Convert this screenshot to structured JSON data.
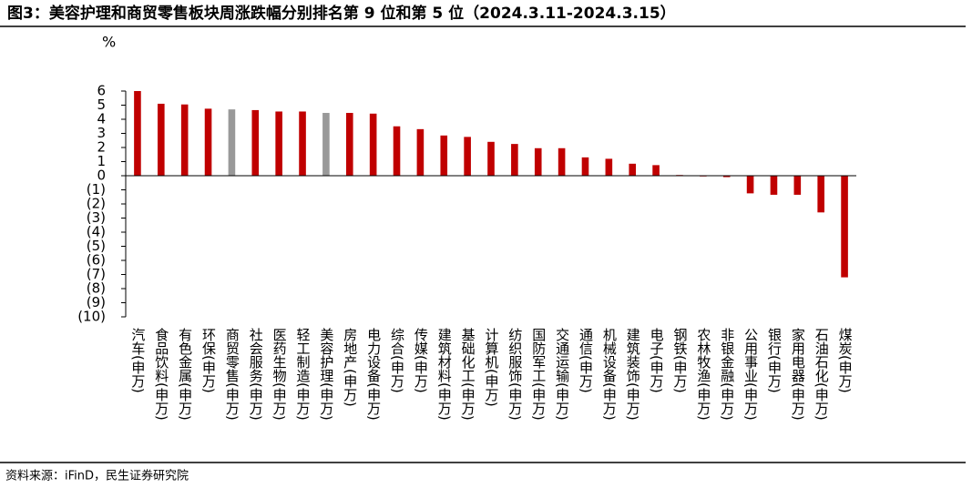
{
  "chart_data": {
    "type": "bar",
    "title": "图3：美容护理和商贸零售板块周涨跌幅分别排名第 9 位和第 5 位（2024.3.11-2024.3.15）",
    "y_unit": "%",
    "source": "资料来源：iFinD，民生证券研究院",
    "categories": [
      "汽车(申万)",
      "食品饮料(申万)",
      "有色金属(申万)",
      "环保(申万)",
      "商贸零售(申万)",
      "社会服务(申万)",
      "医药生物(申万)",
      "轻工制造(申万)",
      "美容护理(申万)",
      "房地产(申万)",
      "电力设备(申万)",
      "综合(申万)",
      "传媒(申万)",
      "建筑材料(申万)",
      "基础化工(申万)",
      "计算机(申万)",
      "纺织服饰(申万)",
      "国防军工(申万)",
      "交通运输(申万)",
      "通信(申万)",
      "机械设备(申万)",
      "建筑装饰(申万)",
      "电子(申万)",
      "钢铁(申万)",
      "农林牧渔(申万)",
      "非银金融(申万)",
      "公用事业(申万)",
      "银行(申万)",
      "家用电器(申万)",
      "石油石化(申万)",
      "煤炭(申万)"
    ],
    "values": [
      6.0,
      5.1,
      5.05,
      4.75,
      4.7,
      4.65,
      4.55,
      4.55,
      4.45,
      4.45,
      4.4,
      3.5,
      3.3,
      2.85,
      2.75,
      2.4,
      2.25,
      1.95,
      1.95,
      1.3,
      1.2,
      0.85,
      0.75,
      0.05,
      -0.05,
      -0.1,
      -1.25,
      -1.35,
      -1.35,
      -2.6,
      -7.2
    ],
    "colors": [
      "#c00000",
      "#c00000",
      "#c00000",
      "#c00000",
      "#999999",
      "#c00000",
      "#c00000",
      "#c00000",
      "#999999",
      "#c00000",
      "#c00000",
      "#c00000",
      "#c00000",
      "#c00000",
      "#c00000",
      "#c00000",
      "#c00000",
      "#c00000",
      "#c00000",
      "#c00000",
      "#c00000",
      "#c00000",
      "#c00000",
      "#c00000",
      "#c00000",
      "#c00000",
      "#c00000",
      "#c00000",
      "#c00000",
      "#c00000",
      "#c00000"
    ],
    "ylim": [
      -10,
      6
    ],
    "yticks": [
      6,
      5,
      4,
      3,
      2,
      1,
      0,
      {
        "value": -1,
        "label": "(1)"
      },
      {
        "value": -2,
        "label": "(2)"
      },
      {
        "value": -3,
        "label": "(3)"
      },
      {
        "value": -4,
        "label": "(4)"
      },
      {
        "value": -5,
        "label": "(5)"
      },
      {
        "value": -6,
        "label": "(6)"
      },
      {
        "value": -7,
        "label": "(7)"
      },
      {
        "value": -8,
        "label": "(8)"
      },
      {
        "value": -9,
        "label": "(9)"
      },
      {
        "value": -10,
        "label": "(10)"
      }
    ],
    "negative_label_color": "#c00000"
  }
}
